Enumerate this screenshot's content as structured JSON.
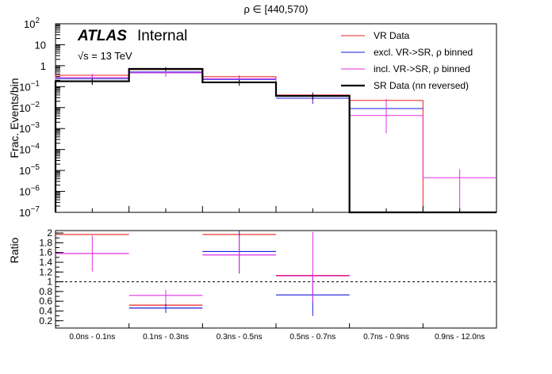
{
  "chart_data": {
    "type": "histogram",
    "title": "ρ ∈ [440,570)",
    "atlas_label": "ATLAS",
    "atlas_sub": "Internal",
    "energy_label": "√s = 13 TeV",
    "categories": [
      "0.0ns - 0.1ns",
      "0.1ns - 0.3ns",
      "0.3ns - 0.5ns",
      "0.5ns - 0.7ns",
      "0.7ns - 0.9ns",
      "0.9ns - 12.0ns"
    ],
    "top": {
      "ylabel": "Frac. Events/bin",
      "yscale": "log",
      "ylim": [
        1e-07,
        100
      ],
      "yticks": [
        {
          "v": 100,
          "b": "10",
          "e": "2"
        },
        {
          "v": 10,
          "b": "10",
          "e": ""
        },
        {
          "v": 1,
          "b": "1",
          "e": ""
        },
        {
          "v": 0.1,
          "b": "10",
          "e": "−1"
        },
        {
          "v": 0.01,
          "b": "10",
          "e": "−2"
        },
        {
          "v": 0.001,
          "b": "10",
          "e": "−3"
        },
        {
          "v": 0.0001,
          "b": "10",
          "e": "−4"
        },
        {
          "v": 1e-05,
          "b": "10",
          "e": "−5"
        },
        {
          "v": 1e-06,
          "b": "10",
          "e": "−6"
        },
        {
          "v": 1e-07,
          "b": "10",
          "e": "−7"
        }
      ],
      "series": [
        {
          "name": "VR Data",
          "color": "#e8231f",
          "style": "step",
          "values": [
            0.35,
            0.65,
            0.3,
            0.04,
            0.022,
            1e-08
          ]
        },
        {
          "name": "excl. VR->SR, ρ binned",
          "color": "#1a1adf",
          "style": "errorbar",
          "values": [
            0.24,
            0.5,
            0.22,
            0.028,
            0.009,
            1e-08
          ],
          "errors_low": [
            0.11,
            0.16,
            0.07,
            0.013,
            0.005,
            0
          ],
          "errors_high": [
            0.11,
            0.16,
            0.07,
            0.013,
            0.008,
            0
          ]
        },
        {
          "name": "incl. VR->SR, ρ binned",
          "color": "#e030e0",
          "style": "step_errorbar",
          "values": [
            0.27,
            0.45,
            0.24,
            0.035,
            0.0042,
            4.5e-06
          ],
          "errors_low": [
            0.12,
            0.16,
            0.09,
            0.015,
            0.0036,
            4.4e-06
          ],
          "errors_high": [
            0.14,
            0.2,
            0.11,
            0.02,
            0.022,
            7e-06
          ]
        },
        {
          "name": "SR Data (nn reversed)",
          "color": "#000000",
          "style": "step_bold",
          "values": [
            0.18,
            0.7,
            0.16,
            0.036,
            1e-08,
            1e-08
          ],
          "errors_low": [
            0.06,
            0.15,
            0.05,
            0.012,
            0,
            0
          ],
          "errors_high": [
            0.06,
            0.15,
            0.05,
            0.012,
            0,
            0
          ]
        }
      ]
    },
    "ratio": {
      "ylabel": "Ratio",
      "ylim": [
        0.05,
        2.05
      ],
      "yticks": [
        0.2,
        0.4,
        0.6,
        0.8,
        1,
        1.2,
        1.4,
        1.6,
        1.8,
        2
      ],
      "reference_line": 1.0,
      "series": [
        {
          "name": "VR Data",
          "color": "#e8231f",
          "values": [
            1.97,
            0.52,
            1.97,
            1.13,
            null,
            null
          ]
        },
        {
          "name": "excl. VR->SR, ρ binned",
          "color": "#1a1adf",
          "values": [
            null,
            0.46,
            1.62,
            0.73,
            null,
            null
          ],
          "errors_low": [
            0,
            0.1,
            0.45,
            0.43,
            0,
            0
          ],
          "errors_high": [
            0,
            0.1,
            0.45,
            0.43,
            0,
            0
          ]
        },
        {
          "name": "incl. VR->SR, ρ binned",
          "color": "#e030e0",
          "values": [
            1.58,
            0.72,
            1.55,
            1.12,
            null,
            null
          ],
          "errors_low": [
            0.37,
            0.15,
            0.37,
            0.55,
            0,
            0
          ],
          "errors_high": [
            0.37,
            0.11,
            0.41,
            0.9,
            0,
            0
          ]
        }
      ]
    }
  }
}
